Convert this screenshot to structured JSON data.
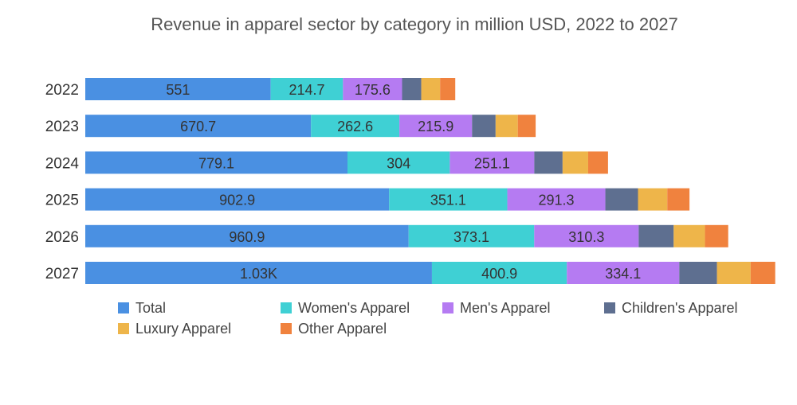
{
  "chart_data": {
    "type": "bar",
    "orientation": "horizontal",
    "stacked": true,
    "title": "Revenue in apparel sector by category in million USD, 2022 to 2027",
    "categories": [
      "2022",
      "2023",
      "2024",
      "2025",
      "2026",
      "2027"
    ],
    "series": [
      {
        "name": "Total",
        "color": "#4a90e2",
        "values": [
          551,
          670.7,
          779.1,
          902.9,
          960.9,
          1030
        ],
        "labels": [
          "551",
          "670.7",
          "779.1",
          "902.9",
          "960.9",
          "1.03K"
        ]
      },
      {
        "name": "Women's Apparel",
        "color": "#3fd0d4",
        "values": [
          214.7,
          262.6,
          304,
          351.1,
          373.1,
          400.9
        ],
        "labels": [
          "214.7",
          "262.6",
          "304",
          "351.1",
          "373.1",
          "400.9"
        ]
      },
      {
        "name": "Men's Apparel",
        "color": "#b57bf2",
        "values": [
          175.6,
          215.9,
          251.1,
          291.3,
          310.3,
          334.1
        ],
        "labels": [
          "175.6",
          "215.9",
          "251.1",
          "291.3",
          "310.3",
          "334.1"
        ]
      },
      {
        "name": "Children's Apparel",
        "color": "#5e6f90",
        "values": [
          57,
          70,
          84,
          97,
          104,
          112
        ]
      },
      {
        "name": "Luxury Apparel",
        "color": "#eeb54a",
        "values": [
          56,
          66,
          76,
          87,
          93,
          100
        ]
      },
      {
        "name": "Other Apparel",
        "color": "#f0823e",
        "values": [
          45,
          53,
          59,
          66,
          69,
          73
        ]
      }
    ],
    "xlim": [
      0,
      2020
    ],
    "grid": false,
    "legend_position": "bottom"
  }
}
